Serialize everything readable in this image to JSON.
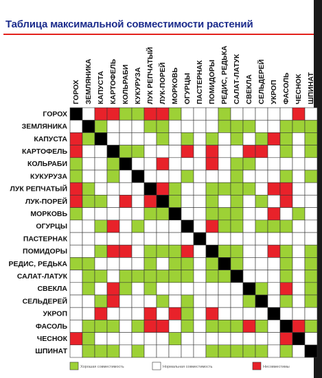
{
  "title": "Таблица максимальной совместимости растений",
  "chart_data": {
    "type": "heatmap",
    "title": "Таблица максимальной совместимости растений",
    "plants": [
      "ГОРОХ",
      "ЗЕМЛЯНИКА",
      "КАПУСТА",
      "КАРТОФЕЛЬ",
      "КОЛЬРАБИ",
      "КУКУРУЗА",
      "ЛУК РЕПЧАТЫЙ",
      "ЛУК-ПОРЕЙ",
      "МОРКОВЬ",
      "ОГУРЦЫ",
      "ПАСТЕРНАК",
      "ПОМИДОРЫ",
      "РЕДИС, РЕДЬКА",
      "САЛАТ-ЛАТУК",
      "СВЕКЛА",
      "СЕЛЬДЕРЕЙ",
      "УКРОП",
      "ФАСОЛЬ",
      "ЧЕСНОК",
      "ШПИНАТ"
    ],
    "value_legend": {
      "D": "diagonal",
      "G": "Хорошая совместимость",
      "N": "Нормальная совместимость",
      "R": "Несовместимы"
    },
    "matrix": [
      "DNRRGGRRGNNNGNNNNNRN",
      "NDGNNNGGNNNNGGGNNGGG",
      "RGDNNNNGNGNGNGNGRGNG",
      "RNNDGGNNNRNRNNRRNGNG",
      "GNNGDNNRNNNRNGGNNNNN",
      "GNNGNDNNNGNNNGNNNGNG",
      "RGNNNNDRGNNGGGGNRRNN",
      "RGGNRNRDGNNGNGNGNRNN",
      "GNNNNNGGDNNGGGNNRNGN",
      "NNGRNGNNNDNRGGNGGGNN",
      "NNNNNNNNNNDNNNNNNNNN",
      "NNGRRNGGGRNDGGNNRGNG",
      "GGNNNNGNGGNGDGNNNGNG",
      "NGGNGGGGGGNGGDNNNGNG",
      "NGNRGNGNNNNNNNDGNRNG",
      "NNGRNNNGNGNNNNGDNGNG",
      "NNRNNNRNRGNRNNNNDNNN",
      "NGGGNGRRNGNGGGRGNDRG",
      "RGNNNNNNGNNNNNNNNRDN",
      "NGGGNGNNNNNGGGGGNGND"
    ]
  },
  "legend": {
    "good": {
      "label": "Хорошая совместимость",
      "color": "#9dd136"
    },
    "normal": {
      "label": "Нормальная совместимость",
      "color": "#ffffff"
    },
    "bad": {
      "label": "Несовместимы",
      "color": "#e8222a"
    },
    "diagonal_color": "#000000"
  }
}
